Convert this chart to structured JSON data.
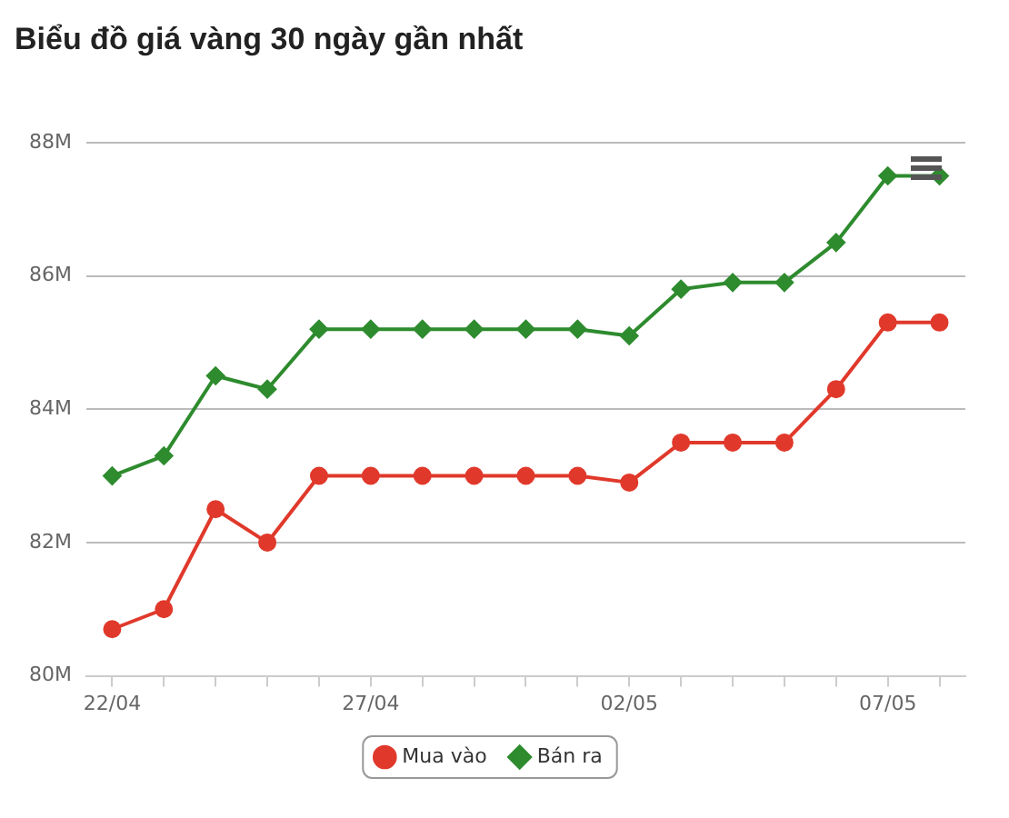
{
  "chart_data": {
    "type": "line",
    "title": "Biểu đồ giá vàng 30 ngày gần nhất",
    "categories": [
      "22/04",
      null,
      null,
      null,
      null,
      "27/04",
      null,
      null,
      null,
      null,
      "02/05",
      null,
      null,
      null,
      null,
      "07/05",
      null
    ],
    "series": [
      {
        "name": "Mua vào",
        "color": "#e0392b",
        "marker": "circle",
        "values": [
          80.7,
          81.0,
          82.5,
          82.0,
          83.0,
          83.0,
          83.0,
          83.0,
          83.0,
          83.0,
          82.9,
          83.5,
          83.5,
          83.5,
          84.3,
          85.3,
          85.3
        ]
      },
      {
        "name": "Bán ra",
        "color": "#2e8b2e",
        "marker": "diamond",
        "values": [
          83.0,
          83.3,
          84.5,
          84.3,
          85.2,
          85.2,
          85.2,
          85.2,
          85.2,
          85.2,
          85.1,
          85.8,
          85.9,
          85.9,
          86.5,
          87.5,
          87.5
        ]
      }
    ],
    "ylim": [
      80,
      88
    ],
    "yticks": [
      {
        "value": 80,
        "label": "80M"
      },
      {
        "value": 82,
        "label": "82M"
      },
      {
        "value": 84,
        "label": "84M"
      },
      {
        "value": 86,
        "label": "86M"
      },
      {
        "value": 88,
        "label": "88M"
      }
    ],
    "grid": "y",
    "legend": "bottom",
    "line_style": "solid"
  }
}
